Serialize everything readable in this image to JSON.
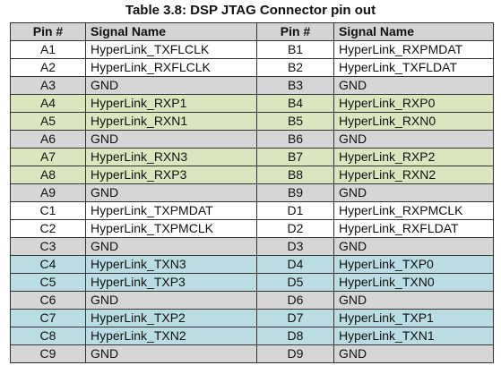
{
  "title": "Table 3.8: DSP JTAG Connector pin out",
  "headers": [
    "Pin #",
    "Signal Name",
    "Pin #",
    "Signal Name"
  ],
  "colors": {
    "header": "#d4d4d4",
    "white": "#ffffff",
    "grey": "#d6d6d6",
    "green": "#dbe6bf",
    "blue": "#b9dde3"
  },
  "rows": [
    {
      "style": "white",
      "pin_a": "A1",
      "sig_a": "HyperLink_TXFLCLK",
      "pin_b": "B1",
      "sig_b": "HyperLink_RXPMDAT"
    },
    {
      "style": "white",
      "pin_a": "A2",
      "sig_a": "HyperLink_RXFLCLK",
      "pin_b": "B2",
      "sig_b": "HyperLink_TXFLDAT"
    },
    {
      "style": "grey",
      "pin_a": "A3",
      "sig_a": "GND",
      "pin_b": "B3",
      "sig_b": "GND"
    },
    {
      "style": "green",
      "pin_a": "A4",
      "sig_a": "HyperLink_RXP1",
      "pin_b": "B4",
      "sig_b": "HyperLink_RXP0"
    },
    {
      "style": "green",
      "pin_a": "A5",
      "sig_a": "HyperLink_RXN1",
      "pin_b": "B5",
      "sig_b": "HyperLink_RXN0"
    },
    {
      "style": "grey",
      "pin_a": "A6",
      "sig_a": "GND",
      "pin_b": "B6",
      "sig_b": "GND"
    },
    {
      "style": "green",
      "pin_a": "A7",
      "sig_a": "HyperLink_RXN3",
      "pin_b": "B7",
      "sig_b": "HyperLink_RXP2"
    },
    {
      "style": "green",
      "pin_a": "A8",
      "sig_a": "HyperLink_RXP3",
      "pin_b": "B8",
      "sig_b": "HyperLink_RXN2"
    },
    {
      "style": "grey",
      "pin_a": "A9",
      "sig_a": "GND",
      "pin_b": "B9",
      "sig_b": "GND"
    },
    {
      "style": "white",
      "pin_a": "C1",
      "sig_a": "HyperLink_TXPMDAT",
      "pin_b": "D1",
      "sig_b": "HyperLink_RXPMCLK"
    },
    {
      "style": "white",
      "pin_a": "C2",
      "sig_a": "HyperLink_TXPMCLK",
      "pin_b": "D2",
      "sig_b": "HyperLink_RXFLDAT"
    },
    {
      "style": "grey",
      "pin_a": "C3",
      "sig_a": "GND",
      "pin_b": "D3",
      "sig_b": "GND"
    },
    {
      "style": "blue",
      "pin_a": "C4",
      "sig_a": "HyperLink_TXN3",
      "pin_b": "D4",
      "sig_b": "HyperLink_TXP0"
    },
    {
      "style": "blue",
      "pin_a": "C5",
      "sig_a": "HyperLink_TXP3",
      "pin_b": "D5",
      "sig_b": "HyperLink_TXN0"
    },
    {
      "style": "grey",
      "pin_a": "C6",
      "sig_a": "GND",
      "pin_b": "D6",
      "sig_b": "GND"
    },
    {
      "style": "blue",
      "pin_a": "C7",
      "sig_a": "HyperLink_TXP2",
      "pin_b": "D7",
      "sig_b": "HyperLink_TXP1"
    },
    {
      "style": "blue",
      "pin_a": "C8",
      "sig_a": "HyperLink_TXN2",
      "pin_b": "D8",
      "sig_b": "HyperLink_TXN1"
    },
    {
      "style": "grey",
      "pin_a": "C9",
      "sig_a": "GND",
      "pin_b": "D9",
      "sig_b": "GND"
    }
  ]
}
